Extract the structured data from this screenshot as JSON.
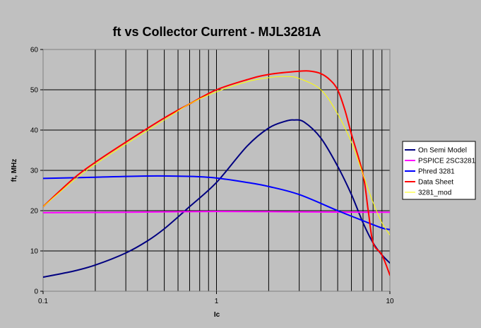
{
  "chart_data": {
    "type": "line",
    "title": "ft vs Collector Current - MJL3281A",
    "xlabel": "Ic",
    "ylabel": "ft, MHz",
    "xscale": "log",
    "xlim": [
      0.1,
      10
    ],
    "ylim": [
      0,
      60
    ],
    "x_ticks": [
      {
        "value": 0.1,
        "label": "0.1"
      },
      {
        "value": 1,
        "label": "1"
      },
      {
        "value": 10,
        "label": "10"
      }
    ],
    "y_ticks": [
      {
        "value": 0,
        "label": "0"
      },
      {
        "value": 10,
        "label": "10"
      },
      {
        "value": 20,
        "label": "20"
      },
      {
        "value": 30,
        "label": "30"
      },
      {
        "value": 40,
        "label": "40"
      },
      {
        "value": 50,
        "label": "50"
      },
      {
        "value": 60,
        "label": "60"
      }
    ],
    "grid": true,
    "legend_position": "right",
    "plot_background": "#c0c0c0",
    "series": [
      {
        "name": "On Semi Model",
        "color": "#000080",
        "points": [
          [
            0.1,
            3.5
          ],
          [
            0.15,
            5
          ],
          [
            0.2,
            6.5
          ],
          [
            0.3,
            9.5
          ],
          [
            0.4,
            12.5
          ],
          [
            0.5,
            15.5
          ],
          [
            0.7,
            21
          ],
          [
            1,
            27
          ],
          [
            1.5,
            36
          ],
          [
            2,
            40.5
          ],
          [
            2.5,
            42.2
          ],
          [
            2.8,
            42.5
          ],
          [
            3.2,
            42
          ],
          [
            4,
            38
          ],
          [
            5,
            31
          ],
          [
            6,
            24
          ],
          [
            7,
            17
          ],
          [
            8,
            12
          ],
          [
            9,
            9
          ],
          [
            10,
            7
          ]
        ]
      },
      {
        "name": "PSPICE 2SC3281",
        "color": "#ff00ff",
        "points": [
          [
            0.1,
            19.5
          ],
          [
            0.3,
            19.6
          ],
          [
            1,
            19.8
          ],
          [
            3,
            19.7
          ],
          [
            10,
            19.6
          ]
        ]
      },
      {
        "name": "Phred 3281",
        "color": "#0000ff",
        "points": [
          [
            0.1,
            28
          ],
          [
            0.2,
            28.3
          ],
          [
            0.4,
            28.6
          ],
          [
            0.7,
            28.5
          ],
          [
            1,
            28.1
          ],
          [
            1.5,
            27
          ],
          [
            2,
            26
          ],
          [
            3,
            24
          ],
          [
            5,
            20
          ],
          [
            7,
            17.5
          ],
          [
            9,
            15.7
          ],
          [
            10,
            15.3
          ]
        ]
      },
      {
        "name": "Data Sheet",
        "color": "#ff0000",
        "points": [
          [
            0.1,
            21
          ],
          [
            0.15,
            28
          ],
          [
            0.2,
            32
          ],
          [
            0.3,
            37
          ],
          [
            0.5,
            43
          ],
          [
            0.7,
            46.5
          ],
          [
            1,
            50
          ],
          [
            1.5,
            52.5
          ],
          [
            2,
            53.8
          ],
          [
            3,
            54.6
          ],
          [
            3.5,
            54.6
          ],
          [
            4,
            54
          ],
          [
            4.5,
            52.5
          ],
          [
            5,
            50
          ],
          [
            5.5,
            45
          ],
          [
            6,
            39
          ],
          [
            7,
            29
          ],
          [
            7.5,
            20
          ],
          [
            8,
            12
          ],
          [
            9,
            9
          ],
          [
            10,
            4
          ]
        ]
      },
      {
        "name": "3281_mod",
        "color": "#ffff00",
        "points": [
          [
            0.1,
            21
          ],
          [
            0.15,
            27.5
          ],
          [
            0.2,
            31.5
          ],
          [
            0.3,
            36.5
          ],
          [
            0.5,
            42.5
          ],
          [
            0.7,
            46.5
          ],
          [
            1,
            49.5
          ],
          [
            1.5,
            52
          ],
          [
            2,
            53
          ],
          [
            2.5,
            53.3
          ],
          [
            3,
            52.8
          ],
          [
            4,
            50
          ],
          [
            5,
            44
          ],
          [
            6,
            37
          ],
          [
            7,
            29
          ],
          [
            8,
            22
          ],
          [
            9,
            17
          ],
          [
            10,
            14
          ]
        ]
      }
    ]
  }
}
